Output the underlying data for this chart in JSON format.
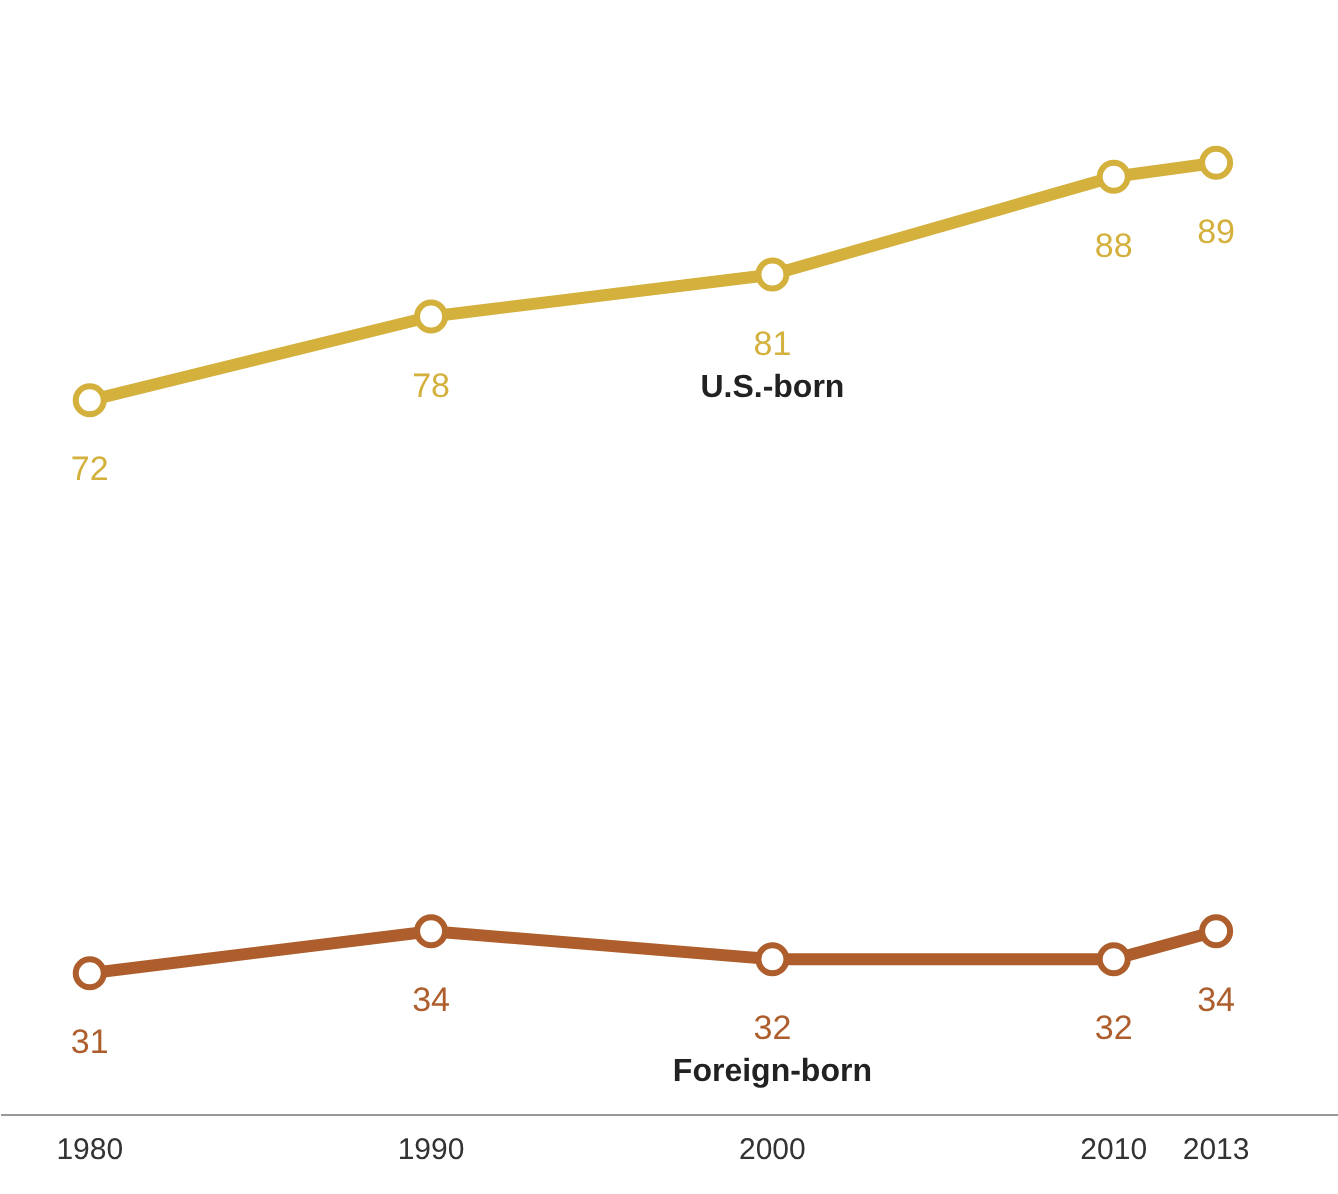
{
  "chart_data": {
    "type": "line",
    "x": [
      1980,
      1990,
      2000,
      2010,
      2013
    ],
    "series": [
      {
        "name": "U.S.-born",
        "color": "#d4b03c",
        "values": [
          72,
          78,
          81,
          88,
          89
        ]
      },
      {
        "name": "Foreign-born",
        "color": "#ad5e2c",
        "values": [
          31,
          34,
          32,
          32,
          34
        ]
      }
    ],
    "xlim": [
      1977.4,
      2016.6
    ],
    "xticks": [
      1980,
      1990,
      2000,
      2010,
      2013
    ],
    "tick_labels": "x",
    "data_labels": true,
    "marker": "circle",
    "grid": false,
    "legend": false
  }
}
